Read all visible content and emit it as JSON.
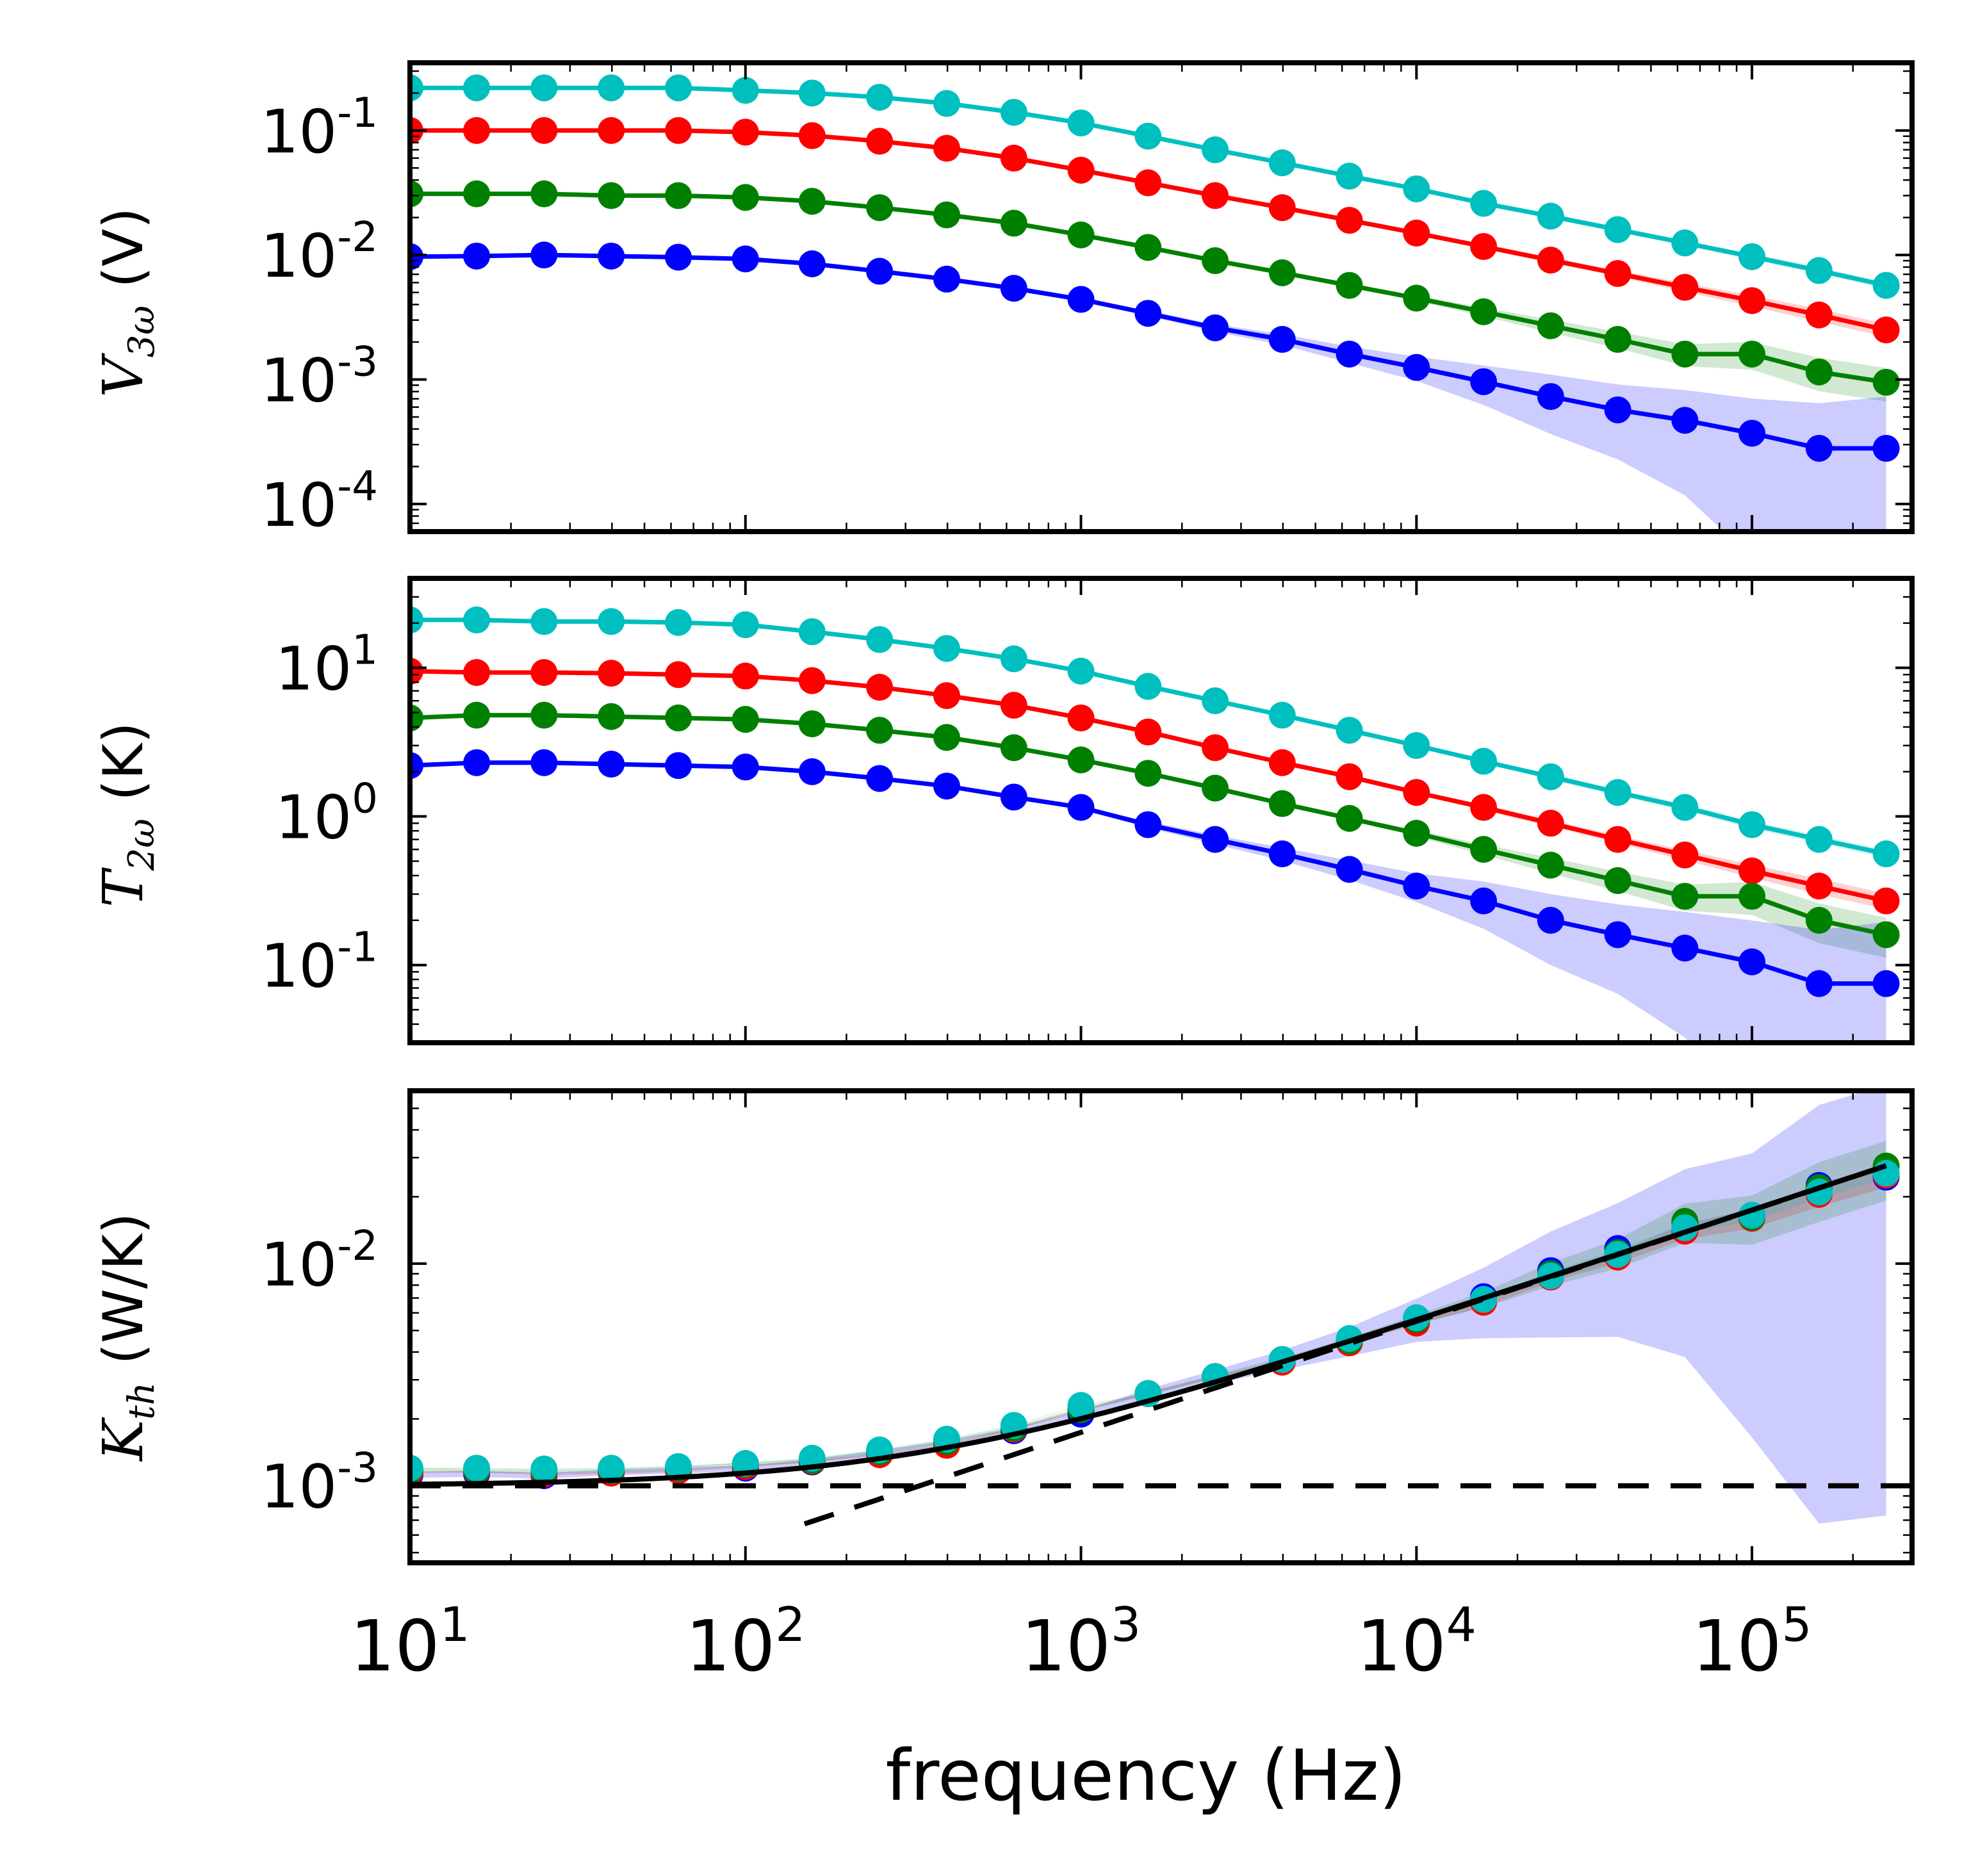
{
  "chart_data": [
    {
      "type": "line",
      "id": "v3w",
      "xscale": "log",
      "yscale": "log",
      "xlim": [
        10,
        300000
      ],
      "ylim": [
        6e-05,
        0.35
      ],
      "ylabel": {
        "sym": "V",
        "sub": "3ω",
        "unit": " (V)"
      },
      "yticks": [
        {
          "value": 0.1,
          "base": "10",
          "exp": "-1"
        },
        {
          "value": 0.01,
          "base": "10",
          "exp": "-2"
        },
        {
          "value": 0.001,
          "base": "10",
          "exp": "-3"
        },
        {
          "value": 0.0001,
          "base": "10",
          "exp": "-4"
        }
      ],
      "x": [
        10,
        15.8,
        25.1,
        39.8,
        63.1,
        100,
        158,
        251,
        398,
        631,
        1000,
        1585,
        2512,
        3981,
        6310,
        10000,
        15850,
        25120,
        39810,
        63100,
        100000,
        158500,
        251200
      ],
      "series": [
        {
          "name": "cyan",
          "color": "#00bfbf",
          "values": [
            0.22,
            0.22,
            0.22,
            0.22,
            0.22,
            0.21,
            0.2,
            0.185,
            0.165,
            0.14,
            0.115,
            0.09,
            0.07,
            0.055,
            0.043,
            0.034,
            0.026,
            0.0205,
            0.016,
            0.0125,
            0.0097,
            0.0075,
            0.0057
          ],
          "band": [
            0.005,
            0.005,
            0.005,
            0.005,
            0.005,
            0.005,
            0.005,
            0.005,
            0.005,
            0.005,
            0.005,
            0.005,
            0.005,
            0.005,
            0.005,
            0.005,
            0.005,
            0.05,
            0.05,
            0.05,
            0.06,
            0.06,
            0.06
          ]
        },
        {
          "name": "red",
          "color": "#ff0000",
          "values": [
            0.1,
            0.1,
            0.1,
            0.1,
            0.1,
            0.097,
            0.091,
            0.082,
            0.072,
            0.06,
            0.048,
            0.038,
            0.03,
            0.024,
            0.019,
            0.015,
            0.0117,
            0.0091,
            0.0071,
            0.0055,
            0.0043,
            0.0033,
            0.0025
          ],
          "band": [
            0.01,
            0.01,
            0.01,
            0.01,
            0.01,
            0.01,
            0.01,
            0.01,
            0.01,
            0.01,
            0.01,
            0.01,
            0.01,
            0.01,
            0.01,
            0.01,
            0.05,
            0.05,
            0.06,
            0.08,
            0.1,
            0.12,
            0.12
          ]
        },
        {
          "name": "green",
          "color": "#008000",
          "values": [
            0.031,
            0.031,
            0.031,
            0.03,
            0.03,
            0.029,
            0.027,
            0.024,
            0.021,
            0.018,
            0.0145,
            0.0115,
            0.009,
            0.0072,
            0.0057,
            0.0045,
            0.0035,
            0.0027,
            0.0021,
            0.0016,
            0.0016,
            0.00115,
            0.00095
          ],
          "band": [
            0.02,
            0.02,
            0.02,
            0.02,
            0.02,
            0.02,
            0.02,
            0.02,
            0.02,
            0.02,
            0.02,
            0.02,
            0.02,
            0.02,
            0.03,
            0.05,
            0.08,
            0.12,
            0.15,
            0.2,
            0.25,
            0.3,
            0.3
          ]
        },
        {
          "name": "blue",
          "color": "#0000ff",
          "values": [
            0.0097,
            0.0098,
            0.01,
            0.0098,
            0.0096,
            0.0093,
            0.0085,
            0.0074,
            0.0064,
            0.0054,
            0.0044,
            0.0034,
            0.0026,
            0.0021,
            0.0016,
            0.00125,
            0.00096,
            0.00073,
            0.00057,
            0.00047,
            0.00037,
            0.00028,
            0.00028
          ],
          "band": [
            0.03,
            0.03,
            0.03,
            0.03,
            0.03,
            0.03,
            0.03,
            0.03,
            0.03,
            0.03,
            0.03,
            0.05,
            0.07,
            0.1,
            0.15,
            0.22,
            0.35,
            0.5,
            0.6,
            0.75,
            0.9,
            1.3,
            1.6
          ]
        }
      ]
    },
    {
      "type": "line",
      "id": "t2w",
      "xscale": "log",
      "yscale": "log",
      "xlim": [
        10,
        300000
      ],
      "ylim": [
        0.03,
        40
      ],
      "ylabel": {
        "sym": "T",
        "sub": "2ω",
        "unit": " (K)"
      },
      "yticks": [
        {
          "value": 10,
          "base": "10",
          "exp": "1"
        },
        {
          "value": 1,
          "base": "10",
          "exp": "0"
        },
        {
          "value": 0.1,
          "base": "10",
          "exp": "-1"
        }
      ],
      "x": [
        10,
        15.8,
        25.1,
        39.8,
        63.1,
        100,
        158,
        251,
        398,
        631,
        1000,
        1585,
        2512,
        3981,
        6310,
        10000,
        15850,
        25120,
        39810,
        63100,
        100000,
        158500,
        251200
      ],
      "series": [
        {
          "name": "cyan",
          "color": "#00bfbf",
          "values": [
            21,
            21,
            20.5,
            20.5,
            20.2,
            19.5,
            17.5,
            15.5,
            13.5,
            11.5,
            9.5,
            7.5,
            6,
            4.8,
            3.8,
            3.0,
            2.35,
            1.85,
            1.45,
            1.15,
            0.88,
            0.7,
            0.56
          ],
          "band": [
            0.005,
            0.005,
            0.005,
            0.005,
            0.005,
            0.005,
            0.005,
            0.005,
            0.005,
            0.005,
            0.005,
            0.005,
            0.005,
            0.005,
            0.005,
            0.005,
            0.005,
            0.05,
            0.05,
            0.05,
            0.06,
            0.06,
            0.06
          ]
        },
        {
          "name": "red",
          "color": "#ff0000",
          "values": [
            9.5,
            9.3,
            9.3,
            9.2,
            9.0,
            8.8,
            8.2,
            7.4,
            6.5,
            5.6,
            4.6,
            3.7,
            2.9,
            2.3,
            1.85,
            1.45,
            1.15,
            0.9,
            0.7,
            0.55,
            0.43,
            0.34,
            0.27
          ],
          "band": [
            0.01,
            0.01,
            0.01,
            0.01,
            0.01,
            0.01,
            0.01,
            0.01,
            0.01,
            0.01,
            0.01,
            0.01,
            0.01,
            0.01,
            0.01,
            0.01,
            0.05,
            0.05,
            0.06,
            0.08,
            0.1,
            0.12,
            0.12
          ]
        },
        {
          "name": "green",
          "color": "#008000",
          "values": [
            4.6,
            4.8,
            4.8,
            4.7,
            4.6,
            4.5,
            4.2,
            3.8,
            3.4,
            2.9,
            2.4,
            1.95,
            1.55,
            1.22,
            0.97,
            0.77,
            0.6,
            0.47,
            0.37,
            0.29,
            0.29,
            0.2,
            0.16
          ],
          "band": [
            0.02,
            0.02,
            0.02,
            0.02,
            0.02,
            0.02,
            0.02,
            0.02,
            0.02,
            0.02,
            0.02,
            0.02,
            0.02,
            0.02,
            0.03,
            0.05,
            0.08,
            0.12,
            0.15,
            0.2,
            0.25,
            0.3,
            0.3
          ]
        },
        {
          "name": "blue",
          "color": "#0000ff",
          "values": [
            2.2,
            2.3,
            2.3,
            2.25,
            2.2,
            2.15,
            2.0,
            1.8,
            1.6,
            1.35,
            1.15,
            0.88,
            0.7,
            0.56,
            0.44,
            0.34,
            0.27,
            0.2,
            0.16,
            0.13,
            0.105,
            0.075,
            0.075
          ],
          "band": [
            0.03,
            0.03,
            0.03,
            0.03,
            0.03,
            0.03,
            0.03,
            0.03,
            0.03,
            0.03,
            0.03,
            0.05,
            0.07,
            0.1,
            0.15,
            0.22,
            0.35,
            0.5,
            0.6,
            0.75,
            0.9,
            1.3,
            1.6
          ]
        }
      ]
    },
    {
      "type": "scatter",
      "id": "kth",
      "xscale": "log",
      "yscale": "log",
      "xlim": [
        10,
        300000
      ],
      "ylim": [
        0.00045,
        0.06
      ],
      "ylabel": {
        "sym": "K",
        "sub": "th",
        "unit": " (W/K)"
      },
      "xlabel": "frequency (Hz)",
      "yticks": [
        {
          "value": 0.01,
          "base": "10",
          "exp": "-2"
        },
        {
          "value": 0.001,
          "base": "10",
          "exp": "-3"
        }
      ],
      "xticks": [
        {
          "value": 10,
          "base": "10",
          "exp": "1"
        },
        {
          "value": 100,
          "base": "10",
          "exp": "2"
        },
        {
          "value": 1000,
          "base": "10",
          "exp": "3"
        },
        {
          "value": 10000,
          "base": "10",
          "exp": "4"
        },
        {
          "value": 100000,
          "base": "10",
          "exp": "5"
        }
      ],
      "x": [
        10,
        15.8,
        25.1,
        39.8,
        63.1,
        100,
        158,
        251,
        398,
        631,
        1000,
        1585,
        2512,
        3981,
        6310,
        10000,
        15850,
        25120,
        39810,
        63100,
        100000,
        158500,
        251200
      ],
      "series": [
        {
          "name": "blue",
          "color": "#0000ff",
          "values": [
            0.00112,
            0.00113,
            0.00111,
            0.00115,
            0.00117,
            0.0012,
            0.00128,
            0.0014,
            0.00155,
            0.00177,
            0.0021,
            0.0026,
            0.0031,
            0.0037,
            0.0045,
            0.0057,
            0.0071,
            0.0093,
            0.0117,
            0.0152,
            0.0165,
            0.0225,
            0.0245
          ],
          "band": [
            0.03,
            0.03,
            0.03,
            0.03,
            0.03,
            0.03,
            0.03,
            0.03,
            0.03,
            0.03,
            0.03,
            0.05,
            0.07,
            0.1,
            0.15,
            0.22,
            0.35,
            0.5,
            0.6,
            0.75,
            0.9,
            1.3,
            1.6
          ]
        },
        {
          "name": "red",
          "color": "#ff0000",
          "values": [
            0.00115,
            0.00116,
            0.00113,
            0.00114,
            0.00117,
            0.00122,
            0.00129,
            0.00138,
            0.00152,
            0.0018,
            0.0022,
            0.0026,
            0.0031,
            0.0036,
            0.0044,
            0.0054,
            0.0067,
            0.0087,
            0.0107,
            0.014,
            0.016,
            0.0205,
            0.025
          ],
          "band": [
            0.01,
            0.01,
            0.01,
            0.01,
            0.01,
            0.01,
            0.01,
            0.01,
            0.01,
            0.01,
            0.01,
            0.01,
            0.01,
            0.01,
            0.01,
            0.01,
            0.05,
            0.05,
            0.06,
            0.08,
            0.1,
            0.12,
            0.12
          ]
        },
        {
          "name": "green",
          "color": "#008000",
          "values": [
            0.00118,
            0.00117,
            0.00116,
            0.00117,
            0.0012,
            0.00125,
            0.0013,
            0.00142,
            0.00158,
            0.00182,
            0.0022,
            0.0026,
            0.0031,
            0.0037,
            0.0045,
            0.0056,
            0.0069,
            0.009,
            0.0112,
            0.0155,
            0.0162,
            0.022,
            0.0275
          ],
          "band": [
            0.02,
            0.02,
            0.02,
            0.02,
            0.02,
            0.02,
            0.02,
            0.02,
            0.02,
            0.02,
            0.02,
            0.02,
            0.02,
            0.02,
            0.03,
            0.05,
            0.08,
            0.12,
            0.15,
            0.2,
            0.25,
            0.3,
            0.3
          ]
        },
        {
          "name": "cyan",
          "color": "#00bfbf",
          "values": [
            0.0012,
            0.0012,
            0.00119,
            0.0012,
            0.00122,
            0.00126,
            0.00133,
            0.00145,
            0.00162,
            0.00187,
            0.0023,
            0.0026,
            0.0031,
            0.0037,
            0.0046,
            0.0057,
            0.0069,
            0.0088,
            0.011,
            0.0145,
            0.0165,
            0.021,
            0.0255
          ],
          "band": [
            0.005,
            0.005,
            0.005,
            0.005,
            0.005,
            0.005,
            0.005,
            0.005,
            0.005,
            0.005,
            0.005,
            0.005,
            0.005,
            0.005,
            0.005,
            0.005,
            0.005,
            0.05,
            0.05,
            0.05,
            0.06,
            0.06,
            0.06
          ]
        }
      ],
      "fit_lines": [
        {
          "name": "model-fit",
          "style": "solid",
          "color": "#000000",
          "K0": 0.001,
          "a": 5.5e-05,
          "p": 0.5,
          "range": [
            10,
            251200
          ]
        },
        {
          "name": "constant-asymptote",
          "style": "dashed",
          "color": "#000000",
          "value": 0.001,
          "range": [
            10,
            300000
          ]
        },
        {
          "name": "sqrt-asymptote",
          "style": "dashed",
          "color": "#000000",
          "a": 5.5e-05,
          "p": 0.5,
          "range": [
            150,
            251200
          ]
        }
      ]
    }
  ]
}
